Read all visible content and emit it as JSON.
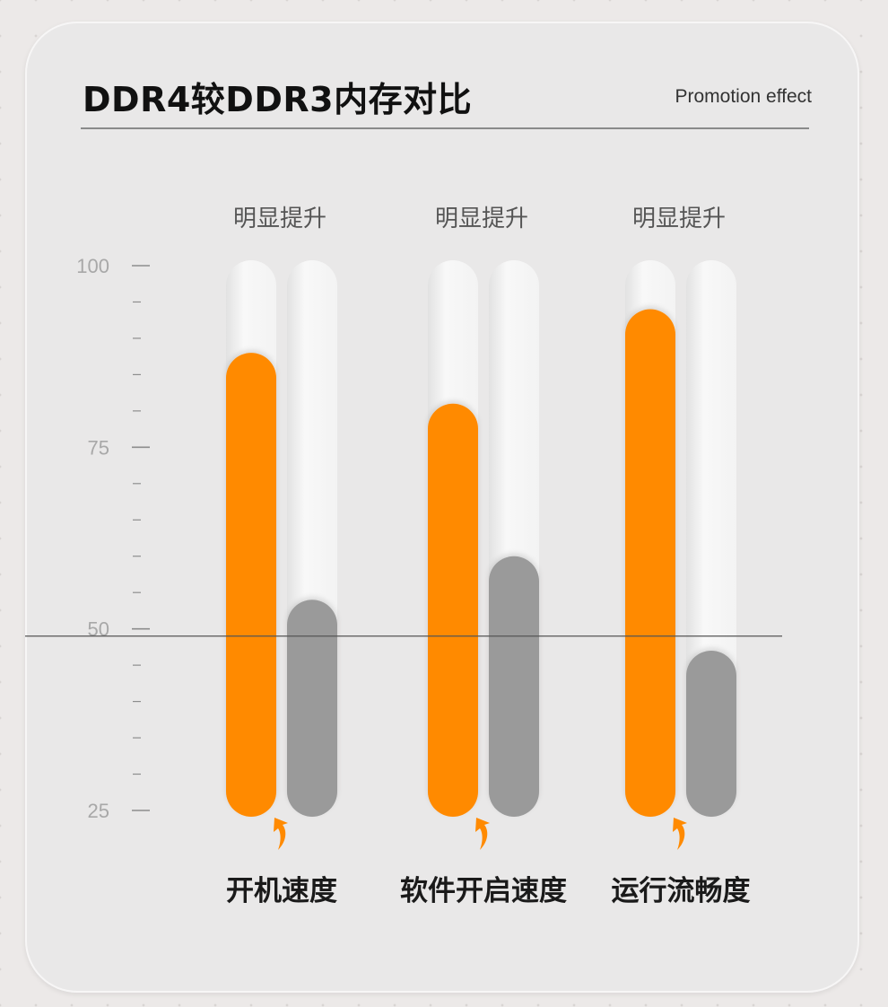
{
  "header": {
    "title": "DDR4较DDR3内存对比",
    "subtitle": "Promotion effect"
  },
  "colors": {
    "ddr4": "#ff8a00",
    "ddr3": "#9a9a9a",
    "track": "#f4f4f4",
    "reference_line": "#555555"
  },
  "chart_data": {
    "type": "bar",
    "title": "DDR4较DDR3内存对比",
    "subtitle": "Promotion effect",
    "categories": [
      "开机速度",
      "软件开启速度",
      "运行流畅度"
    ],
    "group_labels": [
      "明显提升",
      "明显提升",
      "明显提升"
    ],
    "series": [
      {
        "values": [
          88,
          81,
          94
        ]
      },
      {
        "values": [
          54,
          60,
          47
        ]
      }
    ],
    "y_ticks": [
      100,
      75,
      50,
      25
    ],
    "ylim": [
      25,
      100
    ],
    "reference_line": 49,
    "grid": false,
    "legend": "none",
    "annotations": "orange arrow under each DDR4 bar"
  }
}
